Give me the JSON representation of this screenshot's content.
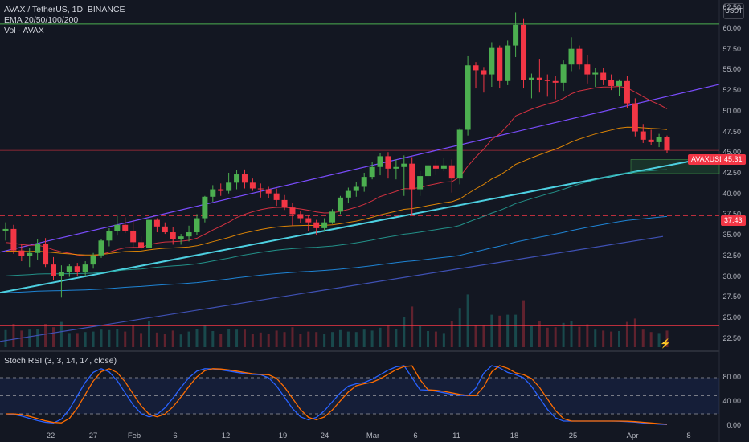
{
  "header": {
    "symbol_line": "AVAX / TetherUS, 1D, BINANCE",
    "ema_label": "EMA 20/50/100/200",
    "vol_label": "Vol · AVAX",
    "currency_button": "USDT"
  },
  "price_axis": {
    "ticks": [
      "62.50",
      "60.00",
      "57.50",
      "55.00",
      "52.50",
      "50.00",
      "47.50",
      "45.00",
      "42.50",
      "40.00",
      "37.50",
      "35.00",
      "32.50",
      "30.00",
      "27.50",
      "25.00",
      "22.50"
    ],
    "current_price": "45.31",
    "current_symbol": "AVAXUSDT",
    "level_tag": "37.43"
  },
  "rsi_panel": {
    "label": "Stoch RSI (3, 3, 14, 14, close)",
    "ticks": [
      "80.00",
      "40.00",
      "0.00"
    ]
  },
  "time_axis": {
    "labels": [
      "22",
      "27",
      "Feb",
      "6",
      "12",
      "19",
      "24",
      "Mar",
      "6",
      "11",
      "18",
      "25",
      "Apr",
      "8"
    ]
  },
  "colors": {
    "up": "#26a69a",
    "up_candle": "#4caf50",
    "down": "#f23645",
    "background": "#131722",
    "trendline": "#4dd0e1",
    "purple_channel": "#7b4dff",
    "blue_channel": "#3f51b5",
    "resistance": "#4caf50",
    "support_dashed": "#f23645",
    "rsi_k": "#2962ff",
    "rsi_d": "#ff6d00"
  },
  "chart_data": {
    "type": "candlestick",
    "timeframe": "1D",
    "candles_ohlc": [
      [
        35.6,
        36.6,
        34.4,
        35.8
      ],
      [
        35.8,
        36.3,
        32.8,
        33.2
      ],
      [
        33.2,
        34.0,
        31.9,
        32.5
      ],
      [
        32.5,
        33.5,
        31.2,
        32.9
      ],
      [
        32.9,
        34.6,
        32.1,
        34.0
      ],
      [
        34.0,
        34.7,
        31.2,
        31.5
      ],
      [
        31.5,
        32.4,
        29.6,
        30.1
      ],
      [
        30.1,
        31.4,
        27.5,
        30.6
      ],
      [
        30.6,
        31.6,
        30.0,
        31.3
      ],
      [
        31.3,
        31.7,
        30.1,
        30.6
      ],
      [
        30.6,
        31.9,
        30.1,
        31.5
      ],
      [
        31.5,
        32.9,
        31.0,
        32.6
      ],
      [
        32.6,
        34.6,
        32.3,
        34.4
      ],
      [
        34.4,
        35.9,
        33.7,
        35.5
      ],
      [
        35.5,
        37.4,
        35.0,
        36.3
      ],
      [
        36.3,
        37.2,
        35.3,
        35.6
      ],
      [
        35.6,
        36.9,
        33.6,
        34.2
      ],
      [
        34.2,
        34.9,
        33.3,
        33.5
      ],
      [
        33.5,
        37.3,
        33.3,
        36.9
      ],
      [
        36.9,
        37.1,
        35.4,
        36.1
      ],
      [
        36.1,
        36.6,
        35.2,
        35.4
      ],
      [
        35.4,
        36.0,
        33.9,
        34.6
      ],
      [
        34.6,
        35.2,
        33.9,
        34.9
      ],
      [
        34.9,
        36.2,
        34.3,
        35.4
      ],
      [
        35.4,
        37.6,
        35.1,
        37.1
      ],
      [
        37.1,
        39.8,
        36.6,
        39.7
      ],
      [
        39.7,
        41.1,
        39.1,
        40.6
      ],
      [
        40.6,
        41.3,
        39.8,
        40.4
      ],
      [
        40.4,
        42.6,
        40.1,
        41.4
      ],
      [
        41.4,
        42.9,
        40.6,
        42.4
      ],
      [
        42.4,
        43.0,
        40.7,
        41.4
      ],
      [
        41.4,
        41.9,
        40.4,
        40.7
      ],
      [
        40.7,
        41.3,
        39.6,
        40.6
      ],
      [
        40.6,
        40.9,
        39.5,
        40.1
      ],
      [
        40.1,
        40.7,
        38.6,
        39.3
      ],
      [
        39.3,
        39.9,
        38.1,
        38.4
      ],
      [
        38.4,
        39.0,
        36.2,
        37.6
      ],
      [
        37.6,
        38.0,
        36.5,
        37.1
      ],
      [
        37.1,
        37.4,
        35.5,
        36.6
      ],
      [
        36.6,
        36.9,
        35.1,
        35.9
      ],
      [
        35.9,
        37.1,
        35.6,
        36.6
      ],
      [
        36.6,
        38.2,
        36.4,
        37.9
      ],
      [
        37.9,
        39.8,
        37.6,
        39.6
      ],
      [
        39.6,
        40.8,
        38.9,
        40.4
      ],
      [
        40.4,
        41.5,
        39.7,
        40.9
      ],
      [
        40.9,
        42.6,
        40.3,
        42.1
      ],
      [
        42.1,
        43.9,
        41.8,
        43.3
      ],
      [
        43.3,
        45.0,
        42.3,
        44.6
      ],
      [
        44.6,
        45.1,
        41.9,
        43.1
      ],
      [
        43.1,
        44.2,
        41.8,
        43.3
      ],
      [
        43.3,
        44.7,
        39.8,
        43.7
      ],
      [
        43.7,
        44.5,
        37.4,
        40.6
      ],
      [
        40.6,
        42.8,
        39.8,
        42.2
      ],
      [
        42.2,
        43.6,
        41.6,
        43.5
      ],
      [
        43.5,
        44.2,
        42.3,
        43.1
      ],
      [
        43.1,
        44.4,
        42.8,
        43.5
      ],
      [
        43.5,
        44.2,
        40.2,
        41.9
      ],
      [
        41.9,
        48.0,
        41.2,
        47.8
      ],
      [
        47.8,
        56.7,
        47.1,
        55.6
      ],
      [
        55.6,
        56.0,
        52.8,
        55.0
      ],
      [
        55.0,
        55.4,
        52.3,
        54.5
      ],
      [
        54.5,
        58.4,
        53.0,
        57.7
      ],
      [
        57.7,
        58.0,
        52.8,
        53.7
      ],
      [
        53.7,
        58.6,
        53.2,
        58.0
      ],
      [
        58.0,
        62.0,
        56.6,
        60.5
      ],
      [
        60.5,
        61.2,
        52.8,
        53.8
      ],
      [
        53.8,
        54.6,
        51.6,
        54.1
      ],
      [
        54.1,
        56.3,
        52.3,
        53.8
      ],
      [
        53.8,
        54.5,
        51.8,
        53.7
      ],
      [
        53.7,
        54.3,
        51.5,
        53.5
      ],
      [
        53.5,
        56.2,
        52.5,
        55.7
      ],
      [
        55.7,
        59.0,
        54.9,
        57.6
      ],
      [
        57.6,
        58.0,
        55.1,
        55.7
      ],
      [
        55.7,
        56.8,
        53.4,
        54.5
      ],
      [
        54.5,
        55.3,
        53.0,
        54.7
      ],
      [
        54.7,
        55.3,
        53.2,
        53.8
      ],
      [
        53.8,
        54.5,
        52.6,
        53.1
      ],
      [
        53.1,
        53.9,
        51.9,
        53.7
      ],
      [
        53.7,
        54.3,
        50.4,
        51.0
      ],
      [
        51.0,
        51.6,
        47.0,
        47.6
      ],
      [
        47.6,
        48.5,
        46.2,
        46.6
      ],
      [
        46.6,
        47.8,
        46.0,
        46.3
      ],
      [
        46.3,
        47.3,
        45.7,
        46.9
      ],
      [
        46.9,
        47.1,
        45.0,
        45.3
      ]
    ],
    "price_range": [
      21.5,
      63.5
    ],
    "current_price": 45.31,
    "horizontal_levels": [
      60.6,
      37.43,
      24.1
    ],
    "lines": [
      "ascending trendline",
      "EMA 20",
      "EMA 50",
      "EMA 100",
      "EMA 200",
      "ascending channel upper",
      "ascending channel lower"
    ],
    "rsi_range": [
      0,
      100
    ],
    "rsi_levels": [
      80,
      50,
      20
    ]
  }
}
